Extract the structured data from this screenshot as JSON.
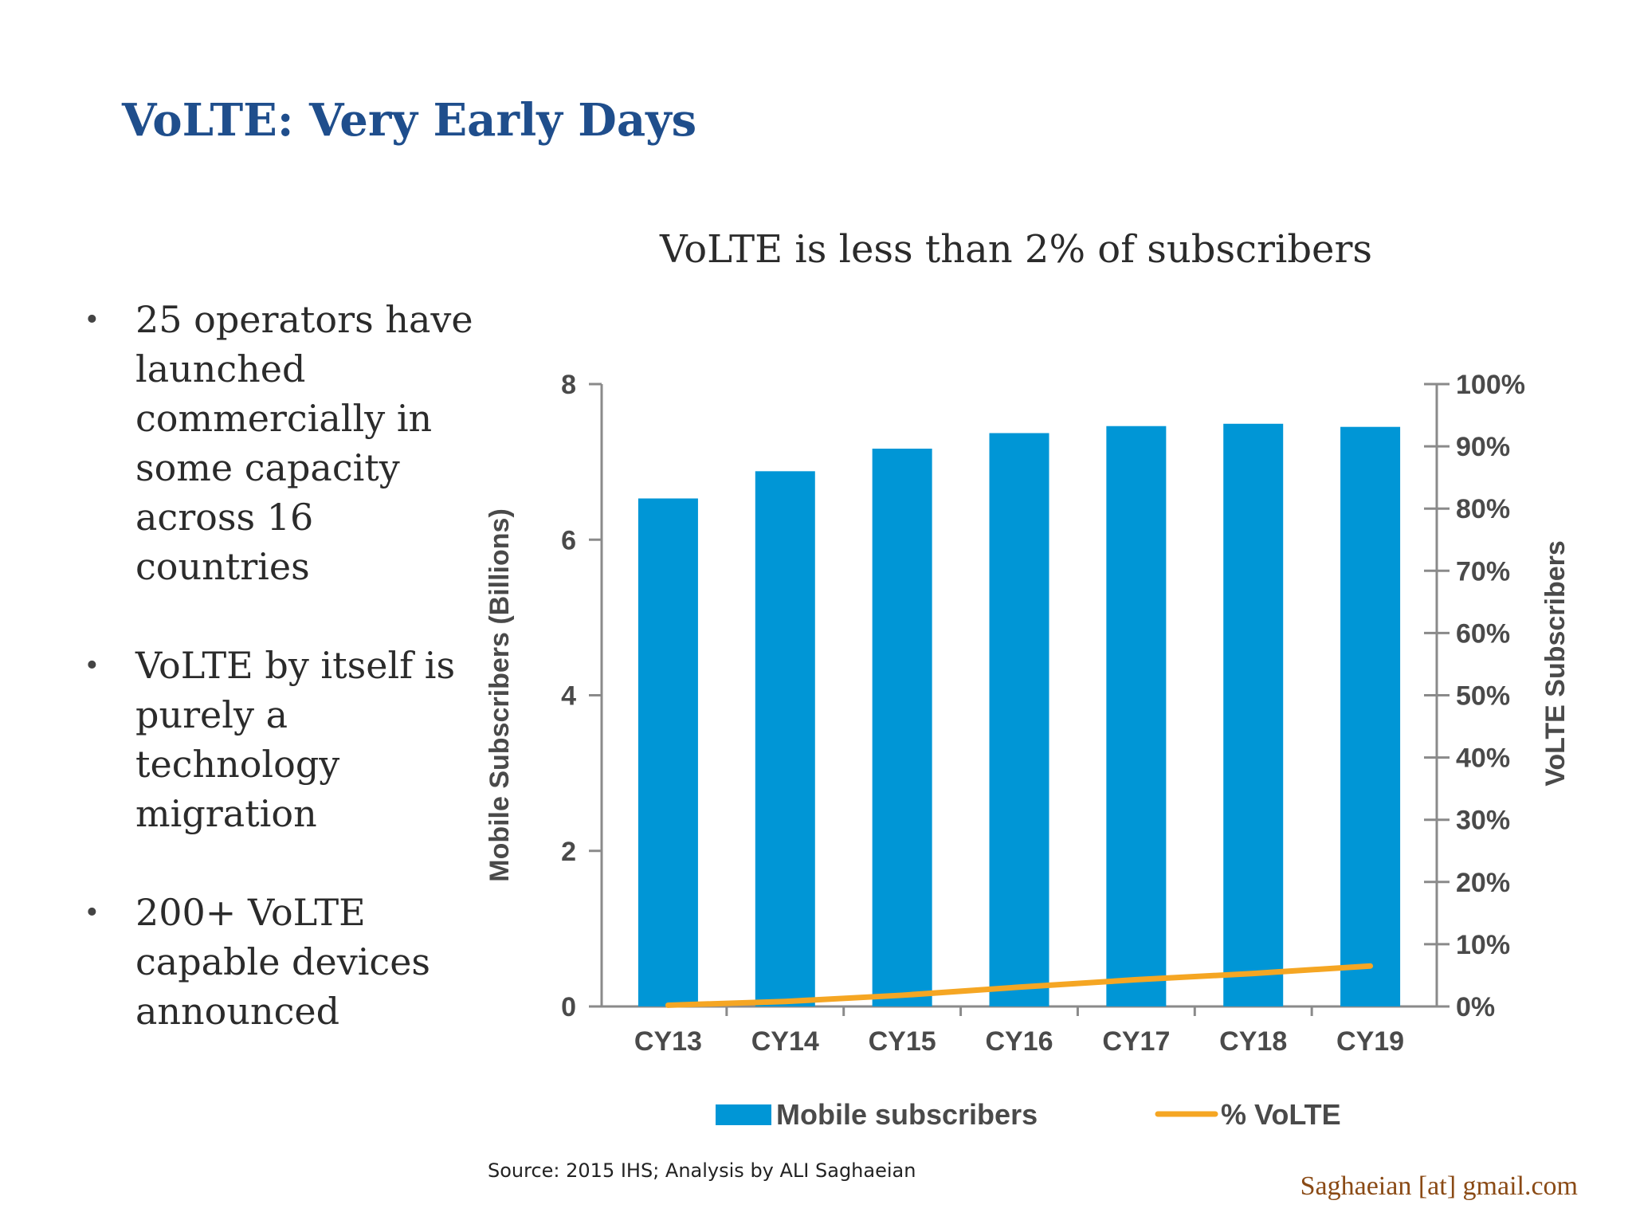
{
  "slide": {
    "title": "VoLTE: Very Early Days",
    "bullets": [
      "25 operators have launched commercially in some capacity across 16 countries",
      "VoLTE by itself is purely a technology migration",
      "200+ VoLTE capable devices announced"
    ],
    "bullet_glyph": "•",
    "source": "Source: 2015 IHS; Analysis by ALI Saghaeian",
    "contact": "Saghaeian [at] gmail.com"
  },
  "chart_data": {
    "type": "bar",
    "title": "VoLTE is less than 2% of subscribers",
    "categories": [
      "CY13",
      "CY14",
      "CY15",
      "CY16",
      "CY17",
      "CY18",
      "CY19"
    ],
    "series": [
      {
        "name": "Mobile subscribers",
        "type": "bar",
        "axis": "left",
        "color": "#0096d6",
        "values": [
          6.53,
          6.88,
          7.17,
          7.37,
          7.46,
          7.49,
          7.45
        ]
      },
      {
        "name": "% VoLTE",
        "type": "line",
        "axis": "right",
        "color": "#f5a623",
        "values": [
          0.2,
          0.8,
          1.8,
          3.1,
          4.3,
          5.3,
          6.5
        ]
      }
    ],
    "ylabel": "Mobile Subscribers  (Billions)",
    "ylim": [
      0,
      8
    ],
    "yticks": [
      "0",
      "2",
      "4",
      "6",
      "8"
    ],
    "y2label": "VoLTE Subscribers",
    "y2lim": [
      0,
      100
    ],
    "y2ticks": [
      "0%",
      "10%",
      "20%",
      "30%",
      "40%",
      "50%",
      "60%",
      "70%",
      "80%",
      "90%",
      "100%"
    ],
    "legend_position": "bottom",
    "grid": false
  }
}
